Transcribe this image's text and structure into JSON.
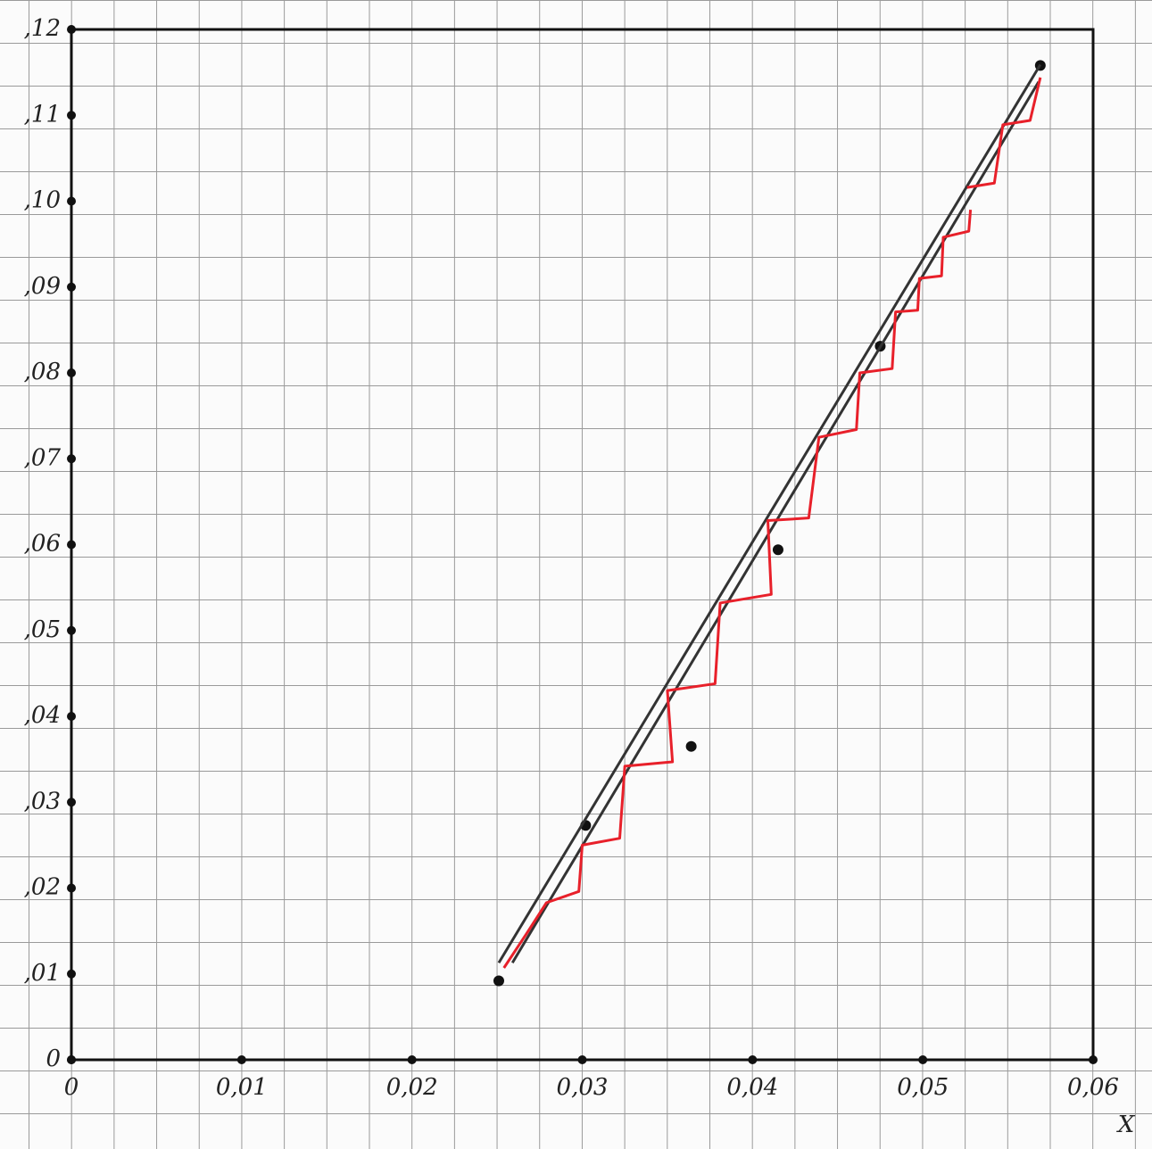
{
  "chart_data": {
    "type": "line",
    "x_label": "X",
    "xlim": [
      0,
      0.06
    ],
    "ylim": [
      0,
      0.12
    ],
    "xticks": [
      {
        "value": 0,
        "label": "0"
      },
      {
        "value": 0.01,
        "label": "0,01"
      },
      {
        "value": 0.02,
        "label": "0,02"
      },
      {
        "value": 0.03,
        "label": "0,03"
      },
      {
        "value": 0.04,
        "label": "0,04"
      },
      {
        "value": 0.05,
        "label": "0,05"
      },
      {
        "value": 0.06,
        "label": "0,06"
      }
    ],
    "yticks": [
      0,
      {
        "value": 0.01,
        "label": ",01"
      },
      {
        "value": 0.02,
        "label": ",02"
      },
      {
        "value": 0.03,
        "label": ",03"
      },
      {
        "value": 0.04,
        "label": ",04"
      },
      {
        "value": 0.05,
        "label": ",05"
      },
      {
        "value": 0.06,
        "label": ",06"
      },
      {
        "value": 0.07,
        "label": ",07"
      },
      {
        "value": 0.08,
        "label": ",08"
      },
      {
        "value": 0.09,
        "label": ",09"
      },
      {
        "value": 0.1,
        "label": ",10"
      },
      {
        "value": 0.11,
        "label": ",11"
      },
      {
        "value": 0.12,
        "label": ",12"
      }
    ],
    "series": [
      {
        "mode": "markers",
        "color": "#111111",
        "x": [
          0.0251,
          0.0302,
          0.0364,
          0.0415,
          0.0475,
          0.0569
        ],
        "values": [
          0.0092,
          0.0273,
          0.0365,
          0.0594,
          0.0831,
          0.1158
        ]
      },
      {
        "mode": "lines",
        "color": "#333333",
        "x": [
          0.0251,
          0.0569
        ],
        "values": [
          0.0113,
          0.1159
        ]
      },
      {
        "mode": "lines",
        "color": "#333333",
        "x": [
          0.0259,
          0.0568
        ],
        "values": [
          0.0113,
          0.1139
        ]
      },
      {
        "mode": "lines",
        "color": "#e8202a",
        "x": [
          0.0254,
          0.0267,
          0.0279,
          0.0298,
          0.03,
          0.0322,
          0.0325,
          0.0353,
          0.035,
          0.0378,
          0.0381,
          0.0411,
          0.0409,
          0.0433,
          0.0439,
          0.0461,
          0.0463,
          0.0482,
          0.0484,
          0.0497,
          0.0498,
          0.0511,
          0.0512,
          0.0527,
          0.0528,
          0.0527,
          0.0526,
          0.0542,
          0.0547,
          0.0563,
          0.0569
        ],
        "values": [
          0.0107,
          0.0146,
          0.0183,
          0.0196,
          0.025,
          0.0258,
          0.0342,
          0.0347,
          0.043,
          0.0438,
          0.0532,
          0.0542,
          0.0628,
          0.0631,
          0.0725,
          0.0734,
          0.08,
          0.0805,
          0.0871,
          0.0873,
          0.091,
          0.0913,
          0.0958,
          0.0965,
          0.099,
          null,
          0.1016,
          0.1021,
          0.1089,
          0.1094,
          0.1144
        ]
      }
    ]
  }
}
